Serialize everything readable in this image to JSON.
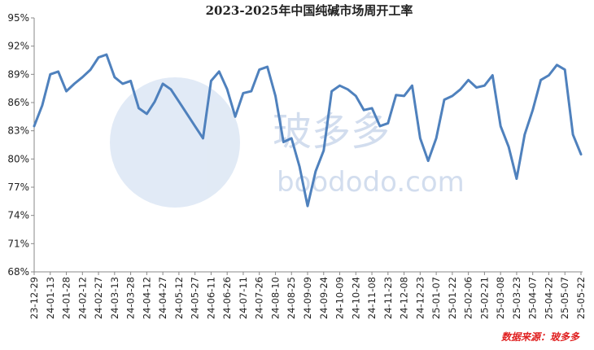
{
  "chart_data": {
    "type": "line",
    "title": "2023-2025年中国纯碱市场周开工率",
    "source": "数据来源：玻多多",
    "watermark": [
      "玻多多",
      "boododo.com"
    ],
    "categories": [
      "23-12-29",
      null,
      "24-01-13",
      null,
      "24-01-28",
      null,
      "24-02-12",
      null,
      "24-02-27",
      null,
      "24-03-13",
      null,
      "24-03-28",
      null,
      "24-04-12",
      null,
      "24-04-27",
      null,
      "24-05-12",
      null,
      "24-05-27",
      null,
      "24-06-11",
      null,
      "24-06-26",
      null,
      "24-07-11",
      null,
      "24-07-26",
      null,
      "24-08-10",
      null,
      "24-08-25",
      null,
      "24-09-09",
      null,
      "24-09-24",
      null,
      "24-10-09",
      null,
      "24-10-24",
      null,
      "24-11-08",
      null,
      "24-11-23",
      null,
      "24-12-08",
      null,
      "24-12-23",
      null,
      "25-01-07",
      null,
      "25-01-22",
      null,
      "25-02-06",
      null,
      "25-02-21",
      null,
      "25-03-08",
      null,
      "25-03-23",
      null,
      "25-04-07",
      null,
      "25-04-22",
      null,
      "25-05-07",
      null,
      "25-05-22"
    ],
    "series": [
      {
        "name": "开工率",
        "color": "#4f81bd",
        "values": [
          83.5,
          85.7,
          89,
          89.3,
          87.2,
          88,
          88.7,
          89.5,
          90.8,
          91.1,
          88.7,
          88,
          88.3,
          85.4,
          84.8,
          86.1,
          88,
          87.4,
          86.1,
          84.8,
          83.5,
          82.2,
          88.3,
          89.3,
          87.4,
          84.5,
          87,
          87.2,
          89.5,
          89.8,
          86.7,
          81.8,
          82.2,
          79.2,
          75.0,
          78.7,
          80.9,
          87.2,
          87.8,
          87.4,
          86.7,
          85.2,
          85.4,
          83.5,
          83.8,
          86.8,
          86.7,
          87.8,
          82.2,
          79.8,
          82.2,
          86.3,
          86.7,
          87.4,
          88.4,
          87.6,
          87.8,
          88.9,
          83.5,
          81.3,
          77.9,
          82.6,
          85.2,
          88.4,
          88.9,
          90,
          89.5,
          82.6,
          80.5
        ]
      }
    ],
    "ylim": [
      68,
      95
    ],
    "yticks": [
      {
        "value": 68,
        "label": "68%"
      },
      {
        "value": 71,
        "label": "71%"
      },
      {
        "value": 74,
        "label": "74%"
      },
      {
        "value": 77,
        "label": "77%"
      },
      {
        "value": 80,
        "label": "80%"
      },
      {
        "value": 83,
        "label": "83%"
      },
      {
        "value": 86,
        "label": "86%"
      },
      {
        "value": 89,
        "label": "89%"
      },
      {
        "value": 92,
        "label": "92%"
      },
      {
        "value": 95,
        "label": "95%"
      }
    ],
    "grid": false
  }
}
